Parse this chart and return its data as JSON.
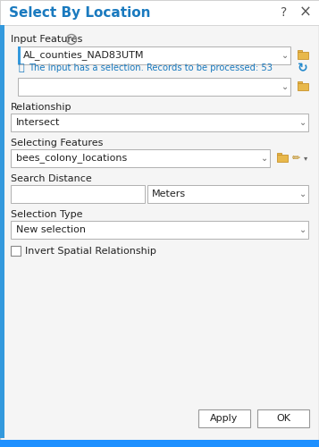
{
  "title": "Select By Location",
  "title_color": "#1a7abf",
  "bg_color": "#f0f0f0",
  "dialog_bg": "#f5f5f5",
  "input_features_label": "Input Features",
  "input_features_value": "AL_counties_NAD83UTM",
  "info_text": "The input has a selection. Records to be processed: 53",
  "info_color": "#1a7abf",
  "relationship_label": "Relationship",
  "relationship_value": "Intersect",
  "selecting_features_label": "Selecting Features",
  "selecting_features_value": "bees_colony_locations",
  "search_distance_label": "Search Distance",
  "meters_value": "Meters",
  "selection_type_label": "Selection Type",
  "selection_type_value": "New selection",
  "checkbox_label": "Invert Spatial Relationship",
  "apply_btn": "Apply",
  "ok_btn": "OK",
  "box_border": "#b0b0b0",
  "text_color": "#222222",
  "folder_color": "#e8b84b",
  "folder_border": "#c8922a",
  "bottom_bar_color": "#00aaff",
  "accent_blue": "#3399dd",
  "refresh_color": "#2288cc",
  "arrow_color": "#666666"
}
